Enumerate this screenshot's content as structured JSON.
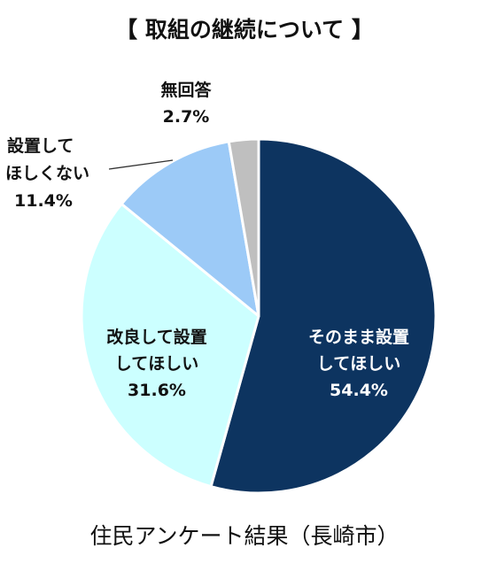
{
  "title": "【 取組の継続について 】",
  "footer": "住民アンケート結果（長崎市）",
  "colors": {
    "stroke": "#ffffff",
    "leader": "#333333",
    "label_dark": "#111111",
    "label_light": "#ffffff"
  },
  "chart_data": {
    "type": "pie",
    "title": "【 取組の継続について 】",
    "start_angle_deg": 0,
    "direction": "clockwise",
    "slices": [
      {
        "label_lines": [
          "そのまま設置",
          "してほしい"
        ],
        "value": 54.4,
        "value_text": "54.4%",
        "color": "#0d3460"
      },
      {
        "label_lines": [
          "改良して設置",
          "してほしい"
        ],
        "value": 31.6,
        "value_text": "31.6%",
        "color": "#ccffff"
      },
      {
        "label_lines": [
          "設置して",
          "ほしくない"
        ],
        "value": 11.4,
        "value_text": "11.4%",
        "color": "#9ccaf7"
      },
      {
        "label_lines": [
          "無回答"
        ],
        "value": 2.7,
        "value_text": "2.7%",
        "color": "#bfbfbf"
      }
    ]
  }
}
